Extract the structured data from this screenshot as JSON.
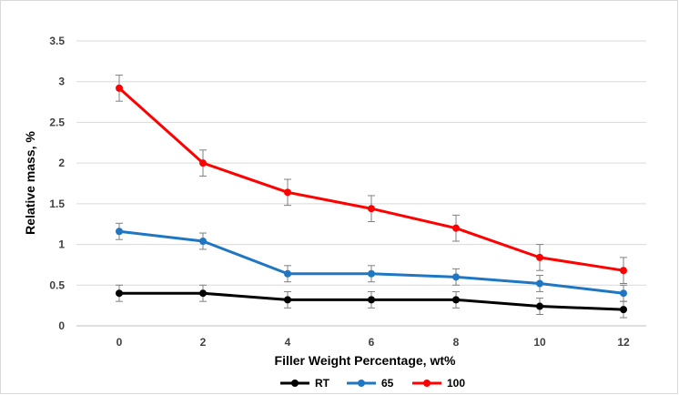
{
  "chart_data": {
    "type": "line",
    "title": "",
    "xlabel": "Filler Weight Percentage, wt%",
    "ylabel": "Relative mass,  %",
    "x": [
      0,
      2,
      4,
      6,
      8,
      10,
      12
    ],
    "x_tick_labels": [
      "0",
      "2",
      "4",
      "6",
      "8",
      "10",
      "12"
    ],
    "ylim": [
      0,
      3.5
    ],
    "y_ticks": [
      0,
      0.5,
      1,
      1.5,
      2,
      2.5,
      3,
      3.5
    ],
    "y_tick_labels": [
      "0",
      "0.5",
      "1",
      "1.5",
      "2",
      "2.5",
      "3",
      "3.5"
    ],
    "grid": "horizontal",
    "legend_position": "bottom",
    "series": [
      {
        "name": "RT",
        "color": "#000000",
        "values": [
          0.4,
          0.4,
          0.32,
          0.32,
          0.32,
          0.24,
          0.2
        ],
        "errors": [
          0.1,
          0.1,
          0.1,
          0.1,
          0.1,
          0.1,
          0.1
        ]
      },
      {
        "name": "65",
        "color": "#1f77c4",
        "values": [
          1.16,
          1.04,
          0.64,
          0.64,
          0.6,
          0.52,
          0.4
        ],
        "errors": [
          0.1,
          0.1,
          0.1,
          0.1,
          0.1,
          0.1,
          0.1
        ]
      },
      {
        "name": "100",
        "color": "#ff0000",
        "values": [
          2.92,
          2.0,
          1.64,
          1.44,
          1.2,
          0.84,
          0.68
        ],
        "errors": [
          0.16,
          0.16,
          0.16,
          0.16,
          0.16,
          0.16,
          0.16
        ]
      }
    ]
  }
}
